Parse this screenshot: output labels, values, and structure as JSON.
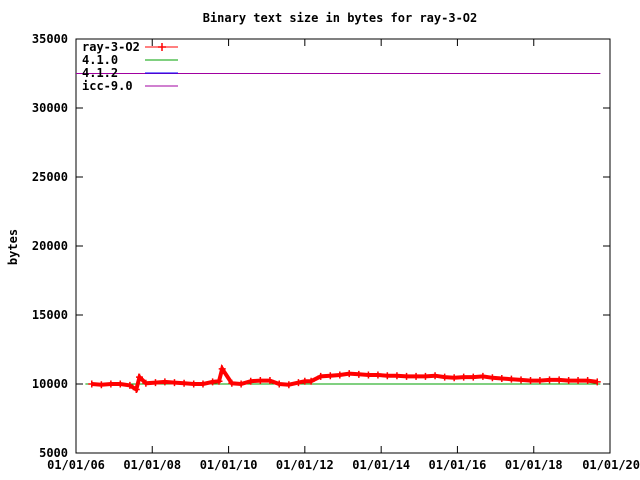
{
  "chart_data": {
    "type": "line",
    "title": "Binary text size in bytes for ray-3-O2",
    "xlabel": "",
    "ylabel": "bytes",
    "x_axis_type": "date",
    "xlim": [
      "2006-01-01",
      "2020-01-01"
    ],
    "ylim": [
      5000,
      35000
    ],
    "grid": false,
    "legend_position": "top-left",
    "y_ticks": [
      5000,
      10000,
      15000,
      20000,
      25000,
      30000,
      35000
    ],
    "y_tick_labels": [
      "5000",
      "10000",
      "15000",
      "20000",
      "25000",
      "30000",
      "35000"
    ],
    "x_ticks": [
      "2006-01-01",
      "2008-01-01",
      "2010-01-01",
      "2012-01-01",
      "2014-01-01",
      "2016-01-01",
      "2018-01-01",
      "2020-01-01"
    ],
    "x_tick_labels": [
      "01/01/06",
      "01/01/08",
      "01/01/10",
      "01/01/12",
      "01/01/14",
      "01/01/16",
      "01/01/18",
      "01/01/20"
    ],
    "series": [
      {
        "name": "ray-3-O2",
        "style": "points",
        "color": "#ff0000",
        "x": [
          "2006-06-01",
          "2006-09-01",
          "2006-12-01",
          "2007-03-01",
          "2007-06-01",
          "2007-08-01",
          "2007-09-01",
          "2007-11-01",
          "2008-02-01",
          "2008-05-01",
          "2008-08-01",
          "2008-11-01",
          "2009-02-01",
          "2009-05-01",
          "2009-08-01",
          "2009-10-01",
          "2009-11-01",
          "2010-02-01",
          "2010-05-01",
          "2010-08-01",
          "2010-11-01",
          "2011-02-01",
          "2011-05-01",
          "2011-08-01",
          "2011-11-01",
          "2012-01-01",
          "2012-03-01",
          "2012-06-01",
          "2012-09-01",
          "2012-12-01",
          "2013-03-01",
          "2013-06-01",
          "2013-09-01",
          "2013-12-01",
          "2014-03-01",
          "2014-06-01",
          "2014-09-01",
          "2014-12-01",
          "2015-03-01",
          "2015-06-01",
          "2015-09-01",
          "2015-12-01",
          "2016-03-01",
          "2016-06-01",
          "2016-09-01",
          "2016-12-01",
          "2017-03-01",
          "2017-06-01",
          "2017-09-01",
          "2017-12-01",
          "2018-03-01",
          "2018-06-01",
          "2018-09-01",
          "2018-12-01",
          "2019-03-01",
          "2019-06-01",
          "2019-09-01"
        ],
        "y": [
          10000,
          9950,
          10000,
          10000,
          9900,
          9600,
          10500,
          10050,
          10100,
          10150,
          10100,
          10050,
          10000,
          10000,
          10150,
          10200,
          11100,
          10050,
          10000,
          10200,
          10250,
          10250,
          10000,
          9950,
          10100,
          10200,
          10200,
          10550,
          10600,
          10650,
          10750,
          10700,
          10650,
          10650,
          10600,
          10600,
          10550,
          10550,
          10550,
          10600,
          10500,
          10450,
          10500,
          10500,
          10550,
          10450,
          10400,
          10350,
          10300,
          10250,
          10250,
          10300,
          10300,
          10250,
          10250,
          10250,
          10150
        ]
      },
      {
        "name": "4.1.0",
        "style": "line",
        "color": "#00a000",
        "x": [
          "2006-04-01",
          "2019-10-01"
        ],
        "y": [
          10000,
          10000
        ]
      },
      {
        "name": "4.1.2",
        "style": "line",
        "color": "#0000ff",
        "x": [],
        "y": []
      },
      {
        "name": "icc-9.0",
        "style": "line",
        "color": "#a000a0",
        "x": [
          "2006-01-01",
          "2019-10-01"
        ],
        "y": [
          32500,
          32500
        ]
      }
    ]
  }
}
